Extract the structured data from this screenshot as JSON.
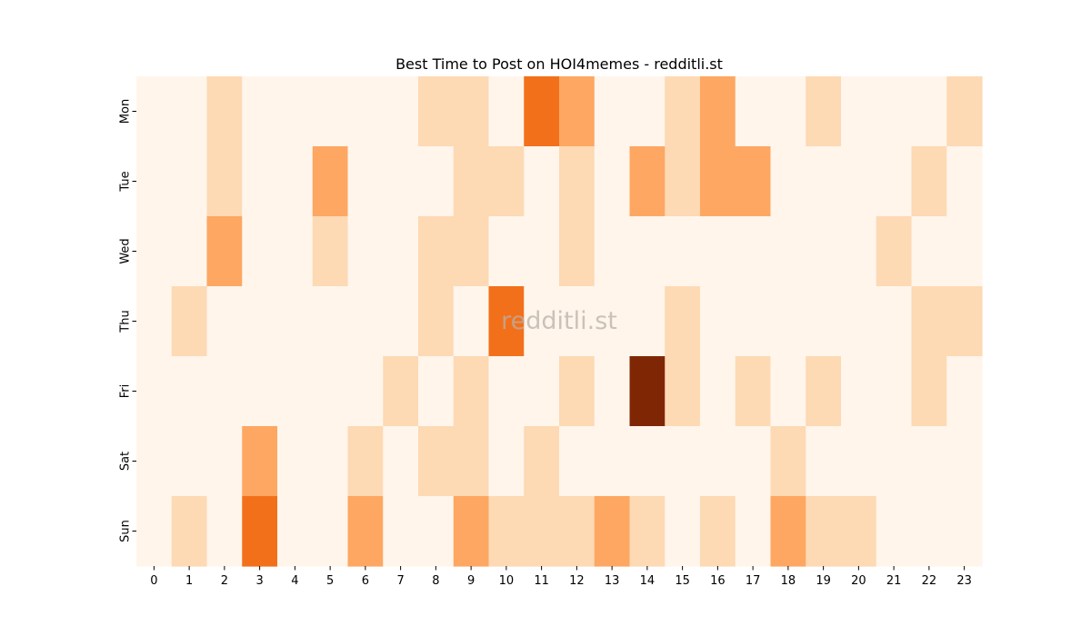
{
  "chart_data": {
    "type": "heatmap",
    "title": "Best Time to Post on HOI4memes - redditli.st",
    "watermark": "redditli.st",
    "x_categories": [
      "0",
      "1",
      "2",
      "3",
      "4",
      "5",
      "6",
      "7",
      "8",
      "9",
      "10",
      "11",
      "12",
      "13",
      "14",
      "15",
      "16",
      "17",
      "18",
      "19",
      "20",
      "21",
      "22",
      "23"
    ],
    "y_categories": [
      "Mon",
      "Tue",
      "Wed",
      "Thu",
      "Fri",
      "Sat",
      "Sun"
    ],
    "xlabel": "",
    "ylabel": "",
    "values": [
      [
        0,
        0,
        1,
        0,
        0,
        0,
        0,
        0,
        1,
        1,
        0,
        3,
        2,
        0,
        0,
        1,
        2,
        0,
        0,
        1,
        0,
        0,
        0,
        1
      ],
      [
        0,
        0,
        1,
        0,
        0,
        2,
        0,
        0,
        0,
        1,
        1,
        0,
        1,
        0,
        2,
        1,
        2,
        2,
        0,
        0,
        0,
        0,
        1,
        0
      ],
      [
        0,
        0,
        2,
        0,
        0,
        1,
        0,
        0,
        1,
        1,
        0,
        0,
        1,
        0,
        0,
        0,
        0,
        0,
        0,
        0,
        0,
        1,
        0,
        0
      ],
      [
        0,
        1,
        0,
        0,
        0,
        0,
        0,
        0,
        1,
        0,
        3,
        0,
        0,
        0,
        0,
        1,
        0,
        0,
        0,
        0,
        0,
        0,
        1,
        1
      ],
      [
        0,
        0,
        0,
        0,
        0,
        0,
        0,
        1,
        0,
        1,
        0,
        0,
        1,
        0,
        5,
        1,
        0,
        1,
        0,
        1,
        0,
        0,
        1,
        0
      ],
      [
        0,
        0,
        0,
        2,
        0,
        0,
        1,
        0,
        1,
        1,
        0,
        1,
        0,
        0,
        0,
        0,
        0,
        0,
        1,
        0,
        0,
        0,
        0,
        0
      ],
      [
        0,
        1,
        0,
        3,
        0,
        0,
        2,
        0,
        0,
        2,
        1,
        1,
        1,
        2,
        1,
        0,
        1,
        0,
        2,
        1,
        1,
        0,
        0,
        0
      ]
    ],
    "colormap": "Oranges",
    "color_levels": [
      "#fff5eb",
      "#fdd9b4",
      "#fda762",
      "#f3701b",
      "#e05a10",
      "#7f2704"
    ],
    "colorbar": false,
    "grid": false
  }
}
